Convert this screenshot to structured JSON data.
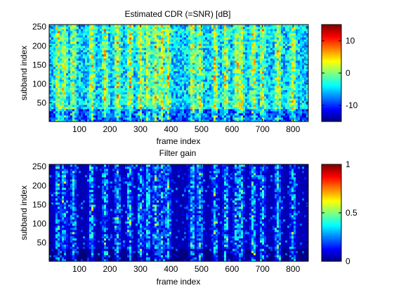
{
  "chart_data": [
    {
      "type": "heatmap",
      "title": "Estimated CDR (=SNR) [dB]",
      "xlabel": "frame index",
      "ylabel": "subband index",
      "xlim": [
        1,
        850
      ],
      "ylim": [
        1,
        256
      ],
      "x_ticks": [
        100,
        200,
        300,
        400,
        500,
        600,
        700,
        800
      ],
      "y_ticks": [
        50,
        100,
        150,
        200,
        250
      ],
      "colormap": "jet",
      "colorbar": {
        "range": [
          -15,
          15
        ],
        "ticks": [
          -10,
          0,
          10
        ]
      },
      "dominant_value_note": "",
      "active_columns": [
        30,
        50,
        80,
        140,
        185,
        225,
        265,
        300,
        325,
        350,
        370,
        390,
        470,
        495,
        545,
        580,
        615,
        630,
        670,
        700,
        750,
        800
      ],
      "grid": false,
      "legend": "none"
    },
    {
      "type": "heatmap",
      "title": "Filter gain",
      "xlabel": "frame index",
      "ylabel": "subband index",
      "xlim": [
        1,
        850
      ],
      "ylim": [
        1,
        256
      ],
      "x_ticks": [
        100,
        200,
        300,
        400,
        500,
        600,
        700,
        800
      ],
      "y_ticks": [
        50,
        100,
        150,
        200,
        250
      ],
      "colormap": "jet",
      "colorbar": {
        "range": [
          0,
          1
        ],
        "ticks": [
          0,
          0.5,
          1
        ]
      },
      "dominant_value_note": "",
      "active_columns": [
        30,
        50,
        80,
        140,
        185,
        225,
        265,
        300,
        325,
        350,
        370,
        390,
        470,
        495,
        545,
        580,
        615,
        630,
        670,
        700,
        750,
        800
      ],
      "grid": false,
      "legend": "none"
    }
  ]
}
